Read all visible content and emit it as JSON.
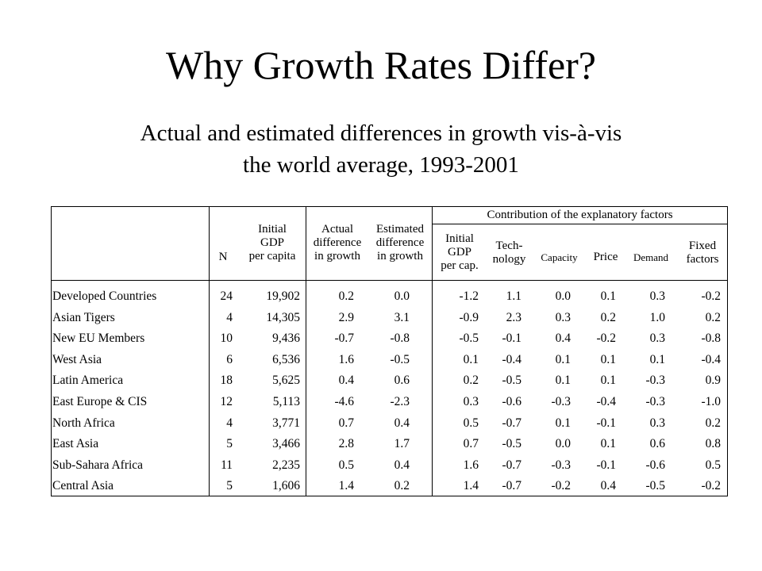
{
  "slide": {
    "title": "Why Growth Rates Differ?",
    "subtitle_line1": "Actual and estimated differences in growth vis-à-vis",
    "subtitle_line2": "the world average, 1993-2001"
  },
  "table": {
    "group_header": "Contribution of the explanatory factors",
    "headers": {
      "n": "N",
      "initial_gdp": [
        "Initial",
        "GDP",
        "per capita"
      ],
      "actual": [
        "Actual",
        "difference",
        "in growth"
      ],
      "estimated": [
        "Estimated",
        "difference",
        "in growth"
      ],
      "f_gdp": [
        "Initial",
        "GDP",
        "per cap."
      ],
      "f_tech": [
        "Tech-",
        "nology"
      ],
      "f_capacity": "Capacity",
      "f_price": "Price",
      "f_demand": "Demand",
      "f_fixed": [
        "Fixed",
        "factors"
      ]
    },
    "rows": [
      {
        "region": "Developed Countries",
        "n": "24",
        "gdp": "19,902",
        "actual": "0.2",
        "estimated": "0.0",
        "f_gdp": "-1.2",
        "tech": "1.1",
        "capacity": "0.0",
        "price": "0.1",
        "demand": "0.3",
        "fixed": "-0.2"
      },
      {
        "region": "Asian Tigers",
        "n": "4",
        "gdp": "14,305",
        "actual": "2.9",
        "estimated": "3.1",
        "f_gdp": "-0.9",
        "tech": "2.3",
        "capacity": "0.3",
        "price": "0.2",
        "demand": "1.0",
        "fixed": "0.2"
      },
      {
        "region": "New EU Members",
        "n": "10",
        "gdp": "9,436",
        "actual": "-0.7",
        "estimated": "-0.8",
        "f_gdp": "-0.5",
        "tech": "-0.1",
        "capacity": "0.4",
        "price": "-0.2",
        "demand": "0.3",
        "fixed": "-0.8"
      },
      {
        "region": "West Asia",
        "n": "6",
        "gdp": "6,536",
        "actual": "1.6",
        "estimated": "-0.5",
        "f_gdp": "0.1",
        "tech": "-0.4",
        "capacity": "0.1",
        "price": "0.1",
        "demand": "0.1",
        "fixed": "-0.4"
      },
      {
        "region": "Latin America",
        "n": "18",
        "gdp": "5,625",
        "actual": "0.4",
        "estimated": "0.6",
        "f_gdp": "0.2",
        "tech": "-0.5",
        "capacity": "0.1",
        "price": "0.1",
        "demand": "-0.3",
        "fixed": "0.9"
      },
      {
        "region": "East Europe & CIS",
        "n": "12",
        "gdp": "5,113",
        "actual": "-4.6",
        "estimated": "-2.3",
        "f_gdp": "0.3",
        "tech": "-0.6",
        "capacity": "-0.3",
        "price": "-0.4",
        "demand": "-0.3",
        "fixed": "-1.0"
      },
      {
        "region": "North Africa",
        "n": "4",
        "gdp": "3,771",
        "actual": "0.7",
        "estimated": "0.4",
        "f_gdp": "0.5",
        "tech": "-0.7",
        "capacity": "0.1",
        "price": "-0.1",
        "demand": "0.3",
        "fixed": "0.2"
      },
      {
        "region": "East Asia",
        "n": "5",
        "gdp": "3,466",
        "actual": "2.8",
        "estimated": "1.7",
        "f_gdp": "0.7",
        "tech": "-0.5",
        "capacity": "0.0",
        "price": "0.1",
        "demand": "0.6",
        "fixed": "0.8"
      },
      {
        "region": "Sub-Sahara Africa",
        "n": "11",
        "gdp": "2,235",
        "actual": "0.5",
        "estimated": "0.4",
        "f_gdp": "1.6",
        "tech": "-0.7",
        "capacity": "-0.3",
        "price": "-0.1",
        "demand": "-0.6",
        "fixed": "0.5"
      },
      {
        "region": "Central Asia",
        "n": "5",
        "gdp": "1,606",
        "actual": "1.4",
        "estimated": "0.2",
        "f_gdp": "1.4",
        "tech": "-0.7",
        "capacity": "-0.2",
        "price": "0.4",
        "demand": "-0.5",
        "fixed": "-0.2"
      }
    ]
  }
}
